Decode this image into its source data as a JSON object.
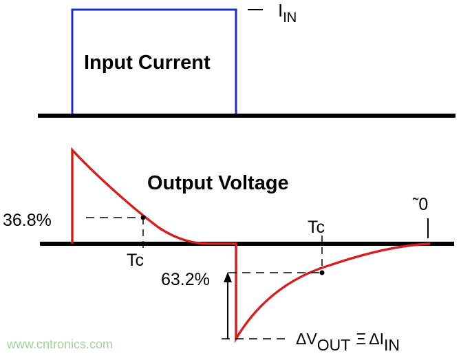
{
  "input": {
    "title": "Input Current",
    "level_label": "I",
    "level_sub": "IN",
    "color": "#1f2fbf"
  },
  "output": {
    "title": "Output Voltage",
    "color": "#d42020",
    "pct_decay": "36.8%",
    "pct_rise": "63.2%",
    "tc_label": "Tc",
    "zero_label": "˜0",
    "delta_v": "ΔV",
    "delta_v_sub": "OUT",
    "equiv": "Ξ",
    "delta_i": "ΔI",
    "delta_i_sub": "IN"
  },
  "watermark": "www.cntronics.com"
}
